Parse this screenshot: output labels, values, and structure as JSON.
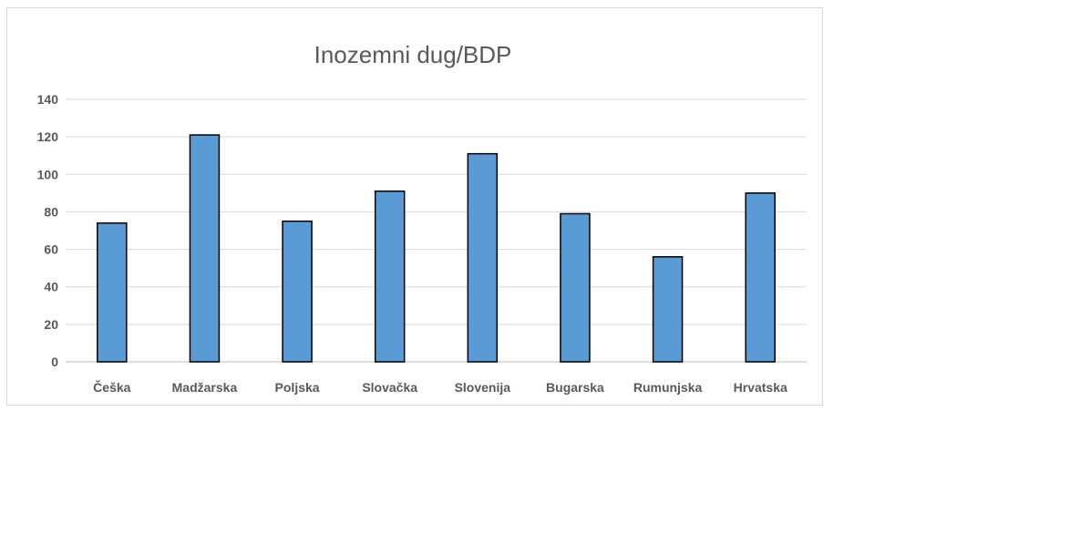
{
  "chart_data": {
    "type": "bar",
    "title": "Inozemni dug/BDP",
    "xlabel": "",
    "ylabel": "",
    "categories": [
      "Češka",
      "Madžarska",
      "Poljska",
      "Slovačka",
      "Slovenija",
      "Bugarska",
      "Rumunjska",
      "Hrvatska"
    ],
    "values": [
      74,
      121,
      75,
      91,
      111,
      79,
      56,
      90
    ],
    "ylim": [
      0,
      140
    ],
    "yticks": [
      "0",
      "20",
      "40",
      "60",
      "80",
      "100",
      "120",
      "140"
    ],
    "grid": true,
    "legend": "none",
    "bar_color": "#5b9bd5",
    "bar_edge_color": "#000000"
  }
}
